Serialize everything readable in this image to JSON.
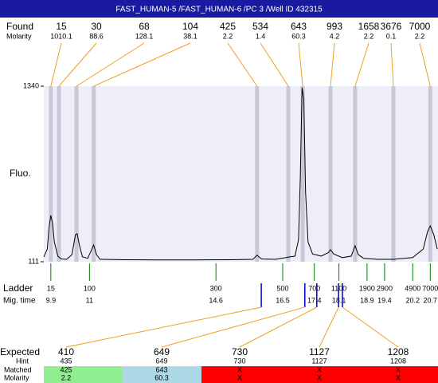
{
  "header": {
    "title": "FAST_HUMAN-5 /FAST_HUMAN-6 /PC 3 /Well ID 432315"
  },
  "found": {
    "label": "Found",
    "molarity_label": "Molarity",
    "peaks": [
      {
        "size": 15,
        "molarity": 1010.1,
        "time": 9.9
      },
      {
        "size": 30,
        "molarity": 88.6,
        "time": 10.13
      },
      {
        "size": 68,
        "molarity": 128.1,
        "time": 10.63
      },
      {
        "size": 104,
        "molarity": 38.1,
        "time": 11.12
      },
      {
        "size": 425,
        "molarity": 2.2,
        "time": 15.77
      },
      {
        "size": 534,
        "molarity": 1.4,
        "time": 16.66
      },
      {
        "size": 643,
        "molarity": 60.3,
        "time": 17.07
      },
      {
        "size": 993,
        "molarity": 4.2,
        "time": 17.86
      },
      {
        "size": 1658,
        "molarity": 2.2,
        "time": 18.56
      },
      {
        "size": 3676,
        "molarity": 0.1,
        "time": 19.65
      },
      {
        "size": 7000,
        "molarity": 2.2,
        "time": 20.7
      }
    ]
  },
  "chart_data": {
    "type": "line",
    "ylabel": "Fluo.",
    "x": [
      9.7,
      9.8,
      9.85,
      9.9,
      9.95,
      10.0,
      10.1,
      10.2,
      10.35,
      10.5,
      10.6,
      10.65,
      10.72,
      10.8,
      10.95,
      11.05,
      11.12,
      11.2,
      11.3,
      12,
      13,
      14,
      15,
      15.65,
      15.77,
      15.9,
      16.3,
      16.6,
      16.7,
      16.85,
      16.95,
      17.0,
      17.05,
      17.1,
      17.15,
      17.22,
      17.35,
      17.6,
      17.8,
      17.86,
      17.95,
      18.2,
      18.45,
      18.56,
      18.65,
      18.8,
      19.2,
      19.65,
      20.2,
      20.5,
      20.62,
      20.7,
      20.8,
      20.9
    ],
    "values": [
      145,
      200,
      350,
      435,
      380,
      250,
      150,
      130,
      128,
      160,
      300,
      307,
      220,
      145,
      135,
      190,
      228,
      160,
      128,
      125,
      124,
      124,
      125,
      128,
      156,
      130,
      128,
      140,
      145,
      150,
      267,
      700,
      1330,
      1250,
      600,
      250,
      165,
      150,
      175,
      195,
      165,
      140,
      150,
      223,
      160,
      135,
      128,
      128,
      140,
      200,
      320,
      362,
      300,
      200
    ],
    "xlim": [
      9.7,
      20.92
    ],
    "ylim": [
      111,
      1340
    ],
    "yticks": [
      111,
      1340
    ],
    "color": "#000000",
    "background": "#eeeef8",
    "band_color": "#c8c8d8",
    "link_color": "#f0a020"
  },
  "ladder": {
    "label": "Ladder",
    "time_label": "Mig. time",
    "color": "#008000",
    "sizes": [
      15,
      100,
      300,
      500,
      700,
      1100,
      1900,
      2900,
      4900,
      7000
    ],
    "times": [
      9.9,
      11,
      14.6,
      16.5,
      17.4,
      18.1,
      18.9,
      19.4,
      20.2,
      20.7
    ]
  },
  "expected": {
    "label": "Expected",
    "hint_label": "Hint",
    "matched_label": "Matched",
    "molarity_label": "Molarity",
    "mark_color": "#0000cc",
    "peaks": [
      {
        "size": 410,
        "hint": 435,
        "matched": 425,
        "molarity": 2.2,
        "time": 15.89,
        "color": "#90ee90"
      },
      {
        "size": 649,
        "hint": 649,
        "matched": 643,
        "molarity": 60.3,
        "time": 17.13,
        "color": "#add8e6"
      },
      {
        "size": 730,
        "hint": 730,
        "matched": "X",
        "molarity": "X",
        "time": 17.47,
        "color": "#ff0000"
      },
      {
        "size": 1127,
        "hint": 1127,
        "matched": "X",
        "molarity": "X",
        "time": 18.09,
        "color": "#ff0000"
      },
      {
        "size": 1208,
        "hint": 1208,
        "matched": "X",
        "molarity": "X",
        "time": 18.2,
        "color": "#ff0000"
      }
    ]
  }
}
